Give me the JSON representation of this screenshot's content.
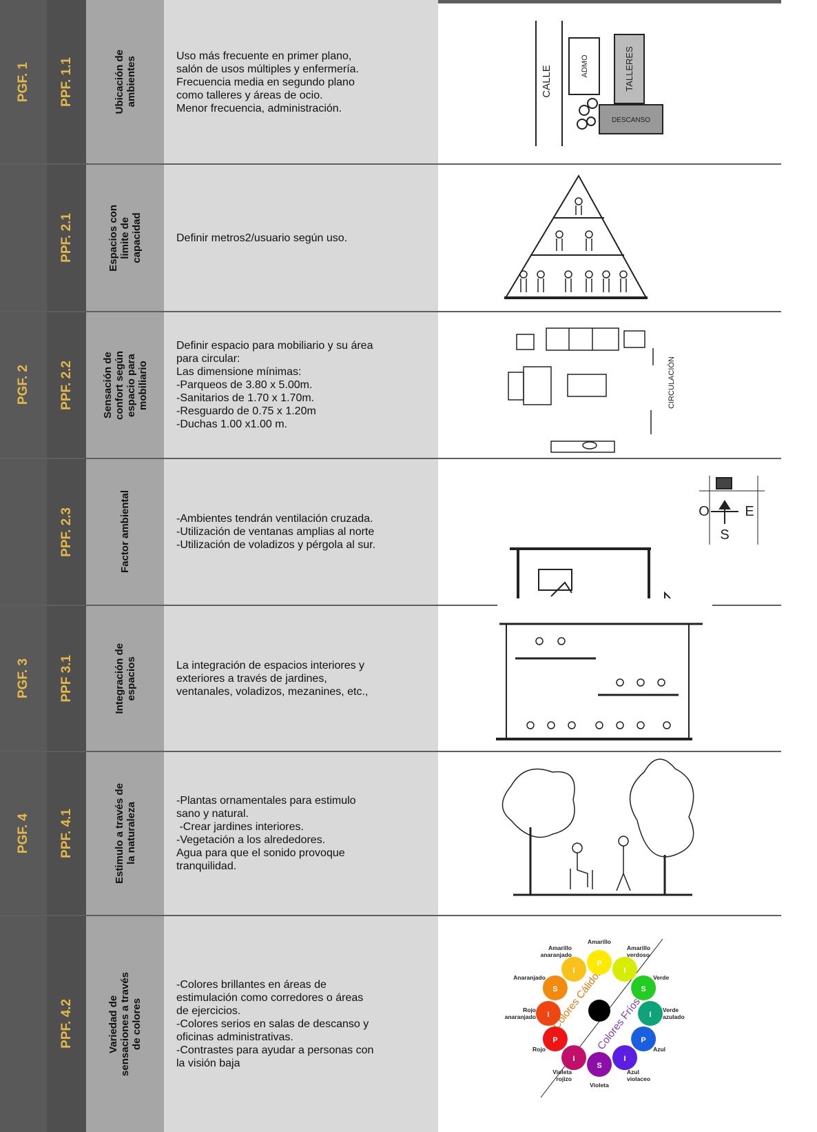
{
  "rows": [
    {
      "pgf": "PGF. 1",
      "ppf": "PPF. 1.1",
      "aspect": [
        "Ubicación de",
        "ambientes"
      ],
      "lines": [
        "Uso más frecuente en primer plano,",
        "salón de usos múltiples y enfermería.",
        "Frecuencia media en segundo plano",
        "como talleres y áreas de ocio.",
        "Menor frecuencia, administración."
      ]
    },
    {
      "ppf": "PPF. 2.1",
      "aspect": [
        "Espacios con",
        "limite de",
        "capacidad"
      ],
      "lines": [
        "Definir metros2/usuario según uso."
      ]
    },
    {
      "pgf": "PGF. 2",
      "ppf": "PPF. 2.2",
      "aspect": [
        "Sensación de",
        "confort según",
        "espacio para",
        "mobiliario"
      ],
      "lines": [
        "Definir espacio para mobiliario y su área",
        "para circular:",
        "Las dimensione mínimas:",
        "-Parqueos de 3.80 x 5.00m.",
        "-Sanitarios de 1.70 x 1.70m.",
        "-Resguardo de 0.75 x 1.20m",
        "-Duchas 1.00 x1.00 m."
      ]
    },
    {
      "ppf": "PPF. 2.3",
      "aspect": [
        "Factor ambiental"
      ],
      "lines": [
        "-Ambientes tendrán ventilación cruzada.",
        "-Utilización de ventanas amplias al norte",
        "-Utilización de voladizos y pérgola al sur."
      ]
    },
    {
      "pgf": "PGF. 3",
      "ppf": "PPF 3.1",
      "aspect": [
        "Integración de",
        "espacios"
      ],
      "lines": [
        "La integración de espacios interiores y",
        "exteriores a través de jardines,",
        "ventanales, voladizos, mezanines, etc.,"
      ]
    },
    {
      "pgf": "PGF. 4",
      "ppf": "PPF. 4.1",
      "aspect": [
        "Estimulo a través de",
        "la naturaleza"
      ],
      "lines": [
        "-Plantas ornamentales para estimulo",
        "sano y natural.",
        " -Crear jardines interiores.",
        "-Vegetación a los alrededores.",
        "Agua para que el sonido provoque",
        "tranquilidad."
      ]
    },
    {
      "ppf": "PPF. 4.2",
      "aspect": [
        "Variedad de",
        "sensaciones  a través",
        "de colores"
      ],
      "lines": [
        "-Colores brillantes en áreas de",
        "estimulación como corredores o áreas",
        "de ejercicios.",
        "-Colores serios en salas de descanso y",
        "oficinas administrativas.",
        "-Contrastes para ayudar a personas con",
        "la visión baja"
      ]
    }
  ],
  "sketch_labels": {
    "calle": "CALLE",
    "admo": "ADMO",
    "talleres": "TALLERES",
    "descanso": "DESCANSO",
    "circulacion": "CIRCULACIÓN",
    "west": "O",
    "east": "E",
    "south": "S"
  },
  "color_wheel": {
    "warm": "Colores Cálidos",
    "cold": "Colores Fríos",
    "colors": [
      {
        "name": [
          "Amarillo"
        ],
        "letter": "P",
        "color": "#ffea00"
      },
      {
        "name": [
          "Amarillo",
          "verdoso"
        ],
        "letter": "I",
        "color": "#d6ec00"
      },
      {
        "name": [
          "Verde"
        ],
        "letter": "S",
        "color": "#22cc22"
      },
      {
        "name": [
          "Verde",
          "azulado"
        ],
        "letter": "I",
        "color": "#0fa37a"
      },
      {
        "name": [
          "Azul"
        ],
        "letter": "P",
        "color": "#1a5fe0"
      },
      {
        "name": [
          "Azul",
          "violaceo"
        ],
        "letter": "I",
        "color": "#5a1fe0"
      },
      {
        "name": [
          "Violeta"
        ],
        "letter": "S",
        "color": "#8e0ea8"
      },
      {
        "name": [
          "Violeta",
          "rojizo"
        ],
        "letter": "I",
        "color": "#c0106a"
      },
      {
        "name": [
          "Rojo"
        ],
        "letter": "P",
        "color": "#ee1515"
      },
      {
        "name": [
          "Rojo",
          "anaranjado"
        ],
        "letter": "I",
        "color": "#ee4512"
      },
      {
        "name": [
          "Anaranjado"
        ],
        "letter": "S",
        "color": "#f28a10"
      },
      {
        "name": [
          "Amarillo",
          "anaranjado"
        ],
        "letter": "I",
        "color": "#f8c21a"
      }
    ]
  }
}
